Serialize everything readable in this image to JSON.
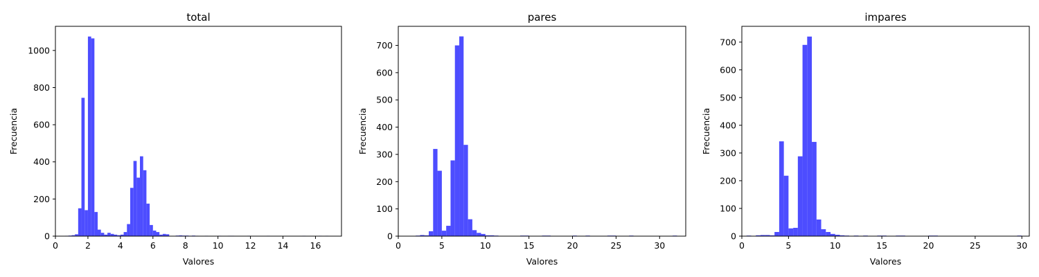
{
  "chart_data": [
    {
      "type": "bar",
      "title": "total",
      "xlabel": "Valores",
      "ylabel": "Frecuencia",
      "xlim": [
        0,
        17.6
      ],
      "ylim": [
        0,
        1130
      ],
      "xticks": [
        0,
        2,
        4,
        6,
        8,
        10,
        12,
        14,
        16
      ],
      "yticks": [
        0,
        200,
        400,
        600,
        800,
        1000
      ],
      "bar_color": "#4d4dff",
      "bins": [
        [
          0.6,
          0.8,
          2
        ],
        [
          0.8,
          1.0,
          3
        ],
        [
          1.0,
          1.2,
          5
        ],
        [
          1.2,
          1.4,
          10
        ],
        [
          1.4,
          1.6,
          150
        ],
        [
          1.6,
          1.8,
          745
        ],
        [
          1.8,
          2.0,
          140
        ],
        [
          2.0,
          2.2,
          1075
        ],
        [
          2.2,
          2.4,
          1065
        ],
        [
          2.4,
          2.6,
          130
        ],
        [
          2.6,
          2.8,
          35
        ],
        [
          2.8,
          3.0,
          18
        ],
        [
          3.0,
          3.2,
          8
        ],
        [
          3.2,
          3.4,
          18
        ],
        [
          3.4,
          3.6,
          12
        ],
        [
          3.6,
          3.8,
          8
        ],
        [
          3.8,
          4.0,
          5
        ],
        [
          4.0,
          4.2,
          8
        ],
        [
          4.2,
          4.4,
          22
        ],
        [
          4.4,
          4.6,
          65
        ],
        [
          4.6,
          4.8,
          260
        ],
        [
          4.8,
          5.0,
          405
        ],
        [
          5.0,
          5.2,
          315
        ],
        [
          5.2,
          5.4,
          430
        ],
        [
          5.4,
          5.6,
          355
        ],
        [
          5.6,
          5.8,
          175
        ],
        [
          5.8,
          6.0,
          60
        ],
        [
          6.0,
          6.2,
          30
        ],
        [
          6.2,
          6.4,
          22
        ],
        [
          6.4,
          6.6,
          8
        ],
        [
          6.6,
          6.8,
          12
        ],
        [
          6.8,
          7.0,
          10
        ],
        [
          7.4,
          7.6,
          3
        ],
        [
          7.6,
          7.8,
          4
        ],
        [
          7.8,
          8.0,
          3
        ],
        [
          8.0,
          8.2,
          3
        ],
        [
          8.2,
          8.4,
          2
        ],
        [
          8.4,
          8.6,
          3
        ],
        [
          8.6,
          8.8,
          2
        ],
        [
          9.2,
          9.4,
          2
        ],
        [
          10.0,
          10.2,
          2
        ],
        [
          10.6,
          10.8,
          2
        ],
        [
          10.8,
          11.0,
          2
        ],
        [
          11.8,
          12.0,
          2
        ],
        [
          13.0,
          13.2,
          2
        ],
        [
          15.2,
          15.4,
          2
        ],
        [
          16.2,
          16.4,
          2
        ],
        [
          16.6,
          16.8,
          2
        ]
      ]
    },
    {
      "type": "bar",
      "title": "pares",
      "xlabel": "Valores",
      "ylabel": "Frecuencia",
      "xlim": [
        0,
        33
      ],
      "ylim": [
        0,
        770
      ],
      "xticks": [
        0,
        5,
        10,
        15,
        20,
        25,
        30
      ],
      "yticks": [
        0,
        100,
        200,
        300,
        400,
        500,
        600,
        700
      ],
      "bar_color": "#4d4dff",
      "bins": [
        [
          2.0,
          2.5,
          2
        ],
        [
          2.5,
          3.0,
          4
        ],
        [
          3.0,
          3.5,
          3
        ],
        [
          3.5,
          4.0,
          18
        ],
        [
          4.0,
          4.5,
          320
        ],
        [
          4.5,
          5.0,
          240
        ],
        [
          5.0,
          5.5,
          20
        ],
        [
          5.5,
          6.0,
          38
        ],
        [
          6.0,
          6.5,
          278
        ],
        [
          6.5,
          7.0,
          700
        ],
        [
          7.0,
          7.5,
          733
        ],
        [
          7.5,
          8.0,
          335
        ],
        [
          8.0,
          8.5,
          62
        ],
        [
          8.5,
          9.0,
          22
        ],
        [
          9.0,
          9.5,
          12
        ],
        [
          9.5,
          10.0,
          8
        ],
        [
          10.0,
          10.5,
          3
        ],
        [
          10.5,
          11.0,
          3
        ],
        [
          11.0,
          11.5,
          2
        ],
        [
          14.0,
          14.5,
          2
        ],
        [
          14.5,
          15.0,
          2
        ],
        [
          16.5,
          17.0,
          2
        ],
        [
          17.0,
          17.5,
          2
        ],
        [
          20.0,
          20.5,
          2
        ],
        [
          21.5,
          22.0,
          2
        ],
        [
          24.0,
          24.5,
          2
        ],
        [
          24.5,
          25.0,
          2
        ],
        [
          26.5,
          27.0,
          2
        ],
        [
          31.5,
          32.0,
          2
        ]
      ]
    },
    {
      "type": "bar",
      "title": "impares",
      "xlabel": "Valores",
      "ylabel": "Frecuencia",
      "xlim": [
        0,
        30.8
      ],
      "ylim": [
        0,
        757
      ],
      "xticks": [
        0,
        5,
        10,
        15,
        20,
        25,
        30
      ],
      "yticks": [
        0,
        100,
        200,
        300,
        400,
        500,
        600,
        700
      ],
      "bar_color": "#4d4dff",
      "bins": [
        [
          0.5,
          1.0,
          2
        ],
        [
          1.5,
          2.0,
          3
        ],
        [
          2.0,
          2.5,
          4
        ],
        [
          2.5,
          3.0,
          4
        ],
        [
          3.0,
          3.5,
          3
        ],
        [
          3.5,
          4.0,
          15
        ],
        [
          4.0,
          4.5,
          342
        ],
        [
          4.5,
          5.0,
          218
        ],
        [
          5.0,
          5.5,
          28
        ],
        [
          5.5,
          6.0,
          30
        ],
        [
          6.0,
          6.5,
          288
        ],
        [
          6.5,
          7.0,
          690
        ],
        [
          7.0,
          7.5,
          720
        ],
        [
          7.5,
          8.0,
          340
        ],
        [
          8.0,
          8.5,
          60
        ],
        [
          8.5,
          9.0,
          25
        ],
        [
          9.0,
          9.5,
          15
        ],
        [
          9.5,
          10.0,
          8
        ],
        [
          10.0,
          10.5,
          5
        ],
        [
          10.5,
          11.0,
          3
        ],
        [
          11.0,
          11.5,
          2
        ],
        [
          12.0,
          12.5,
          2
        ],
        [
          13.0,
          13.5,
          2
        ],
        [
          14.5,
          15.0,
          2
        ],
        [
          15.0,
          15.5,
          2
        ],
        [
          16.5,
          17.0,
          2
        ],
        [
          17.0,
          17.5,
          2
        ],
        [
          20.0,
          20.5,
          2
        ],
        [
          20.5,
          21.0,
          2
        ],
        [
          29.5,
          30.0,
          2
        ]
      ]
    }
  ]
}
